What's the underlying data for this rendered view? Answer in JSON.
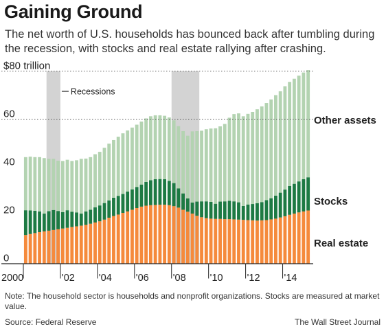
{
  "header": {
    "title": "Gaining Ground",
    "subtitle": "The net worth of U.S. households has bounced back after tumbling during the recession, with stocks and real estate rallying after crashing."
  },
  "footer": {
    "note": "Note: The household sector is households and nonprofit organizations. Stocks are measured at market value.",
    "source": "Source: Federal Reserve",
    "credit": "The Wall Street Journal"
  },
  "colors": {
    "real_estate": "#f58a3c",
    "stocks": "#1d7a43",
    "other_assets": "#b3d3b1",
    "recession": "#d3d3d3",
    "gridline": "#555555"
  },
  "chart_data": {
    "type": "bar",
    "stacked": true,
    "frequency": "quarterly",
    "start": "2000 Q1",
    "y_tick_labels": [
      "$80 trillion",
      "60",
      "40",
      "20",
      "0"
    ],
    "y_ticks": [
      80,
      60,
      40,
      20,
      0
    ],
    "ylim": [
      0,
      80
    ],
    "x_tick_labels": [
      "2000",
      "'02",
      "'04",
      "'06",
      "'08",
      "'10",
      "'12",
      "'14"
    ],
    "legend": "Recessions",
    "recessions": [
      {
        "start": "2001 Q2",
        "end": "2001 Q4"
      },
      {
        "start": "2008 Q1",
        "end": "2009 Q2"
      }
    ],
    "series": [
      {
        "name": "Real estate",
        "values": [
          11.8,
          12.2,
          12.6,
          13.0,
          13.3,
          13.6,
          13.9,
          14.2,
          14.5,
          14.8,
          15.1,
          15.4,
          15.7,
          16.0,
          16.5,
          17.0,
          17.5,
          18.2,
          19.0,
          19.7,
          20.3,
          21.0,
          21.6,
          22.3,
          23.0,
          23.6,
          24.0,
          24.2,
          24.3,
          24.4,
          24.4,
          24.2,
          23.8,
          23.2,
          22.3,
          21.5,
          20.7,
          19.8,
          19.2,
          18.8,
          18.6,
          18.5,
          18.5,
          18.4,
          18.4,
          18.3,
          18.2,
          18.1,
          18.0,
          17.9,
          17.8,
          17.9,
          18.0,
          18.3,
          18.6,
          19.1,
          19.6,
          20.2,
          20.7,
          21.2,
          21.6,
          22.0
        ]
      },
      {
        "name": "Stocks",
        "values": [
          10.3,
          9.8,
          9.3,
          8.6,
          7.4,
          8.1,
          8.3,
          7.6,
          6.8,
          7.3,
          6.4,
          5.8,
          5.0,
          5.6,
          5.8,
          6.3,
          6.6,
          6.9,
          7.2,
          7.6,
          7.8,
          7.9,
          8.3,
          8.5,
          8.8,
          9.2,
          9.9,
          10.4,
          10.7,
          10.7,
          10.6,
          10.1,
          9.6,
          8.0,
          6.8,
          5.5,
          4.6,
          5.9,
          6.6,
          7.0,
          7.0,
          6.3,
          7.2,
          7.4,
          7.6,
          7.5,
          7.2,
          5.8,
          6.5,
          6.8,
          7.2,
          7.6,
          8.3,
          8.8,
          9.6,
          10.3,
          11.1,
          12.0,
          12.4,
          12.9,
          13.4,
          13.8
        ]
      },
      {
        "name": "Other assets",
        "values": [
          22.1,
          22.4,
          22.3,
          22.6,
          23.1,
          21.8,
          21.3,
          20.9,
          21.3,
          21.0,
          21.1,
          21.7,
          22.8,
          22.0,
          21.9,
          22.1,
          22.3,
          23.0,
          23.6,
          24.0,
          24.6,
          25.2,
          25.4,
          25.7,
          25.9,
          26.2,
          26.4,
          26.6,
          26.6,
          26.5,
          26.4,
          26.4,
          26.1,
          25.9,
          25.9,
          26.1,
          29.6,
          29.3,
          29.4,
          30.0,
          30.5,
          31.4,
          31.3,
          32.2,
          34.6,
          36.3,
          37.0,
          37.3,
          37.7,
          38.3,
          39.1,
          39.8,
          40.4,
          41.1,
          41.8,
          42.2,
          43.0,
          43.3,
          43.7,
          44.0,
          44.4,
          44.6
        ]
      }
    ]
  }
}
